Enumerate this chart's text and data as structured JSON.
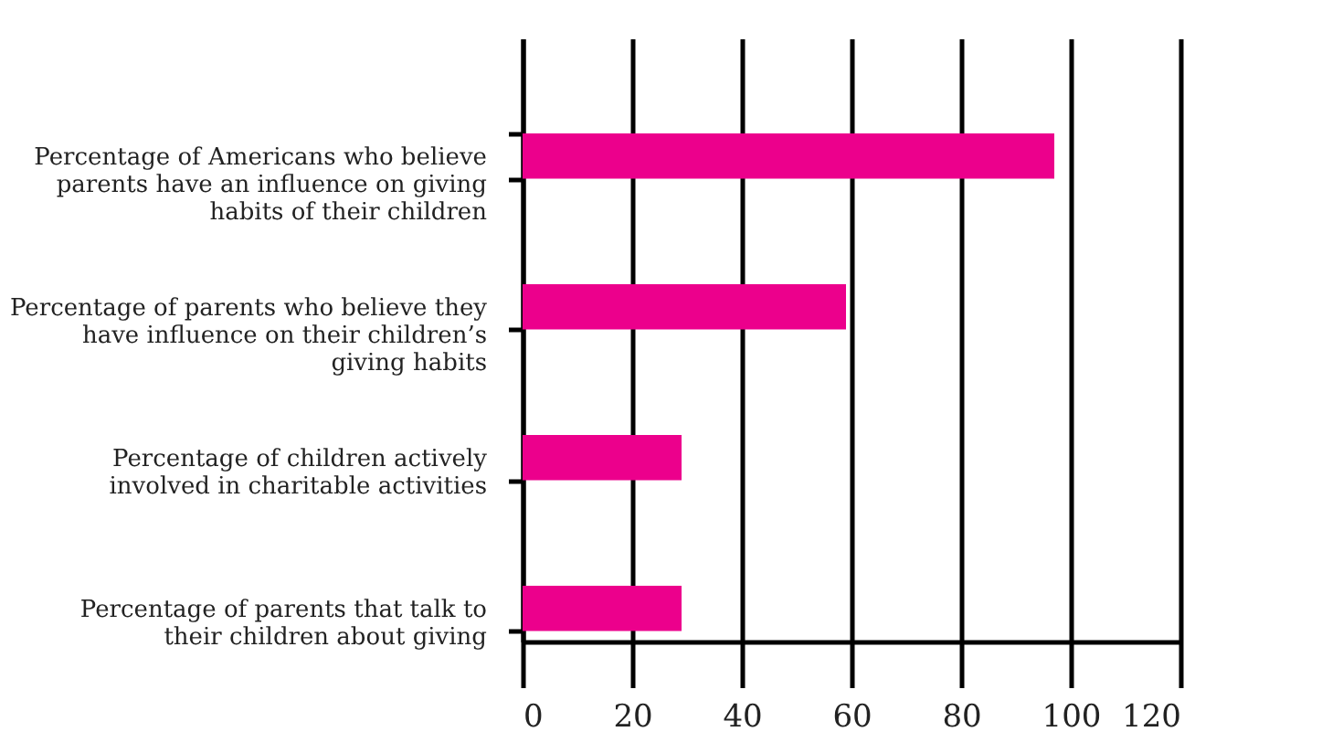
{
  "chart_data": {
    "type": "bar",
    "orientation": "horizontal",
    "categories": [
      "Percentage of Americans who believe parents have an influence on giving habits of their children",
      "Percentage of parents who believe they have influence on their children’s giving habits",
      "Percentage of children actively involved in charitable activities",
      "Percentage of parents that talk to their children about giving"
    ],
    "values": [
      97,
      59,
      29,
      29
    ],
    "color": "#ec008c",
    "xlim": [
      0,
      120
    ],
    "xticks": [
      0,
      20,
      40,
      60,
      80,
      100,
      120
    ],
    "grid": "x"
  }
}
